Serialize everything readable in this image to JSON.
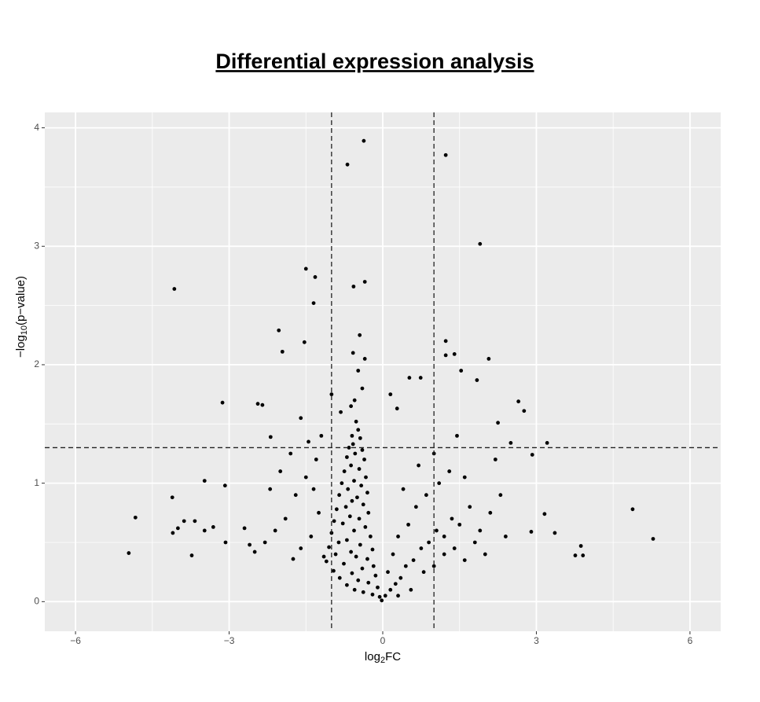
{
  "chart_data": {
    "type": "scatter",
    "title": "Differential expression analysis",
    "xlabel_parts": [
      "log",
      "2",
      "FC"
    ],
    "ylabel_parts": [
      "−log",
      "10",
      "(p−value)"
    ],
    "xlim": [
      -6.6,
      6.6
    ],
    "ylim": [
      -0.25,
      4.13
    ],
    "xticks": [
      {
        "value": -6,
        "label": "−6"
      },
      {
        "value": -3,
        "label": "−3"
      },
      0,
      3,
      6
    ],
    "yticks": [
      0,
      1,
      2,
      3,
      4
    ],
    "xminor": [
      -4.5,
      -1.5,
      1.5,
      4.5
    ],
    "yminor": [
      0.5,
      1.5,
      2.5,
      3.5
    ],
    "grid": true,
    "vlines": [
      -1,
      1
    ],
    "hline": 1.3,
    "color": "#000000",
    "x": [
      -0.37,
      -0.69,
      1.23,
      1.9,
      -4.07,
      -1.5,
      -1.32,
      -1.35,
      -0.35,
      -0.57,
      -2.03,
      1.23,
      2.07,
      -3.13,
      2.65,
      2.76,
      3.21,
      -4.11,
      -3.48,
      -4.83,
      -4.96,
      -3.73,
      -4.1,
      4.88,
      5.28,
      3.87,
      3.91,
      3.76,
      3.36,
      3.16,
      -3.07,
      -3.08,
      -3.67,
      -3.48,
      -3.31,
      -3.88,
      -4.0,
      2.9,
      2.92,
      1.4,
      1.23,
      1.53,
      1.84,
      0.52,
      0.74,
      0.15,
      0.28,
      -1.96,
      -1.53,
      -2.35,
      -2.44,
      -2.19,
      2.25,
      2.5,
      -0.52,
      -0.48,
      -0.6,
      -0.44,
      -0.58,
      -0.66,
      -0.4,
      -0.54,
      -0.7,
      -0.36,
      -0.62,
      -0.46,
      -0.75,
      -0.33,
      -0.56,
      -0.8,
      -0.42,
      -0.68,
      -0.3,
      -0.85,
      -0.5,
      -0.6,
      -0.38,
      -0.72,
      -0.9,
      -0.28,
      -0.64,
      -0.46,
      -0.95,
      -0.78,
      -0.34,
      -0.56,
      -1.0,
      -0.24,
      -0.7,
      -0.86,
      -0.44,
      -1.05,
      -0.2,
      -0.62,
      -0.92,
      -0.52,
      -0.3,
      -1.1,
      -0.76,
      -0.18,
      -0.4,
      -0.96,
      -0.6,
      -0.14,
      -0.84,
      -0.48,
      -0.28,
      -0.7,
      -0.1,
      -0.55,
      -0.38,
      -0.2,
      -0.06,
      -0.02,
      -1.3,
      -1.5,
      -1.7,
      -1.25,
      -1.9,
      -2.1,
      -1.4,
      -2.3,
      -1.6,
      -2.5,
      -1.2,
      -1.45,
      -1.8,
      -2.0,
      -2.2,
      -1.15,
      -1.75,
      -2.6,
      -2.7,
      -1.35,
      -0.55,
      -0.4,
      -0.62,
      -0.48,
      -0.35,
      -0.58,
      -0.45,
      -1.0,
      -0.82,
      -1.6,
      0.05,
      0.15,
      0.25,
      0.1,
      0.35,
      0.45,
      0.2,
      0.6,
      0.75,
      0.3,
      0.9,
      1.05,
      0.5,
      1.2,
      0.65,
      1.35,
      0.85,
      1.5,
      1.1,
      1.7,
      0.4,
      1.3,
      1.9,
      1.0,
      1.6,
      2.1,
      0.7,
      1.45,
      2.3,
      1.2,
      0.55,
      0.8,
      1.0,
      1.4,
      1.8,
      2.0,
      2.4,
      0.3,
      1.6,
      2.2
    ],
    "values": [
      3.89,
      3.69,
      3.77,
      3.02,
      2.64,
      2.81,
      2.74,
      2.52,
      2.7,
      2.66,
      2.29,
      2.2,
      2.05,
      1.68,
      1.69,
      1.61,
      1.34,
      0.88,
      1.02,
      0.71,
      0.41,
      0.39,
      0.58,
      0.78,
      0.53,
      0.47,
      0.39,
      0.39,
      0.58,
      0.74,
      0.5,
      0.98,
      0.68,
      0.6,
      0.63,
      0.68,
      0.62,
      0.59,
      1.24,
      2.09,
      2.08,
      1.95,
      1.87,
      1.89,
      1.89,
      1.75,
      1.63,
      2.11,
      2.19,
      1.66,
      1.67,
      1.39,
      1.51,
      1.34,
      1.52,
      1.45,
      1.4,
      1.38,
      1.33,
      1.3,
      1.28,
      1.25,
      1.22,
      1.2,
      1.15,
      1.12,
      1.1,
      1.05,
      1.02,
      1.0,
      0.98,
      0.95,
      0.92,
      0.9,
      0.88,
      0.85,
      0.82,
      0.8,
      0.78,
      0.75,
      0.72,
      0.7,
      0.68,
      0.66,
      0.63,
      0.6,
      0.58,
      0.55,
      0.52,
      0.5,
      0.48,
      0.46,
      0.44,
      0.42,
      0.4,
      0.38,
      0.36,
      0.34,
      0.32,
      0.3,
      0.28,
      0.26,
      0.24,
      0.22,
      0.2,
      0.18,
      0.16,
      0.14,
      0.12,
      0.1,
      0.08,
      0.06,
      0.04,
      0.01,
      1.2,
      1.05,
      0.9,
      0.75,
      0.7,
      0.6,
      0.55,
      0.5,
      0.45,
      0.42,
      1.4,
      1.35,
      1.25,
      1.1,
      0.95,
      0.38,
      0.36,
      0.48,
      0.62,
      0.95,
      1.7,
      1.8,
      1.65,
      1.95,
      2.05,
      2.1,
      2.25,
      1.75,
      1.6,
      1.55,
      0.05,
      0.1,
      0.15,
      0.25,
      0.2,
      0.3,
      0.4,
      0.35,
      0.45,
      0.55,
      0.5,
      0.6,
      0.65,
      0.55,
      0.8,
      0.7,
      0.9,
      0.65,
      1.0,
      0.8,
      0.95,
      1.1,
      0.6,
      1.25,
      1.05,
      0.75,
      1.15,
      1.4,
      0.9,
      0.4,
      0.1,
      0.25,
      0.3,
      0.45,
      0.5,
      0.4,
      0.55,
      0.05,
      0.35,
      1.2
    ]
  }
}
